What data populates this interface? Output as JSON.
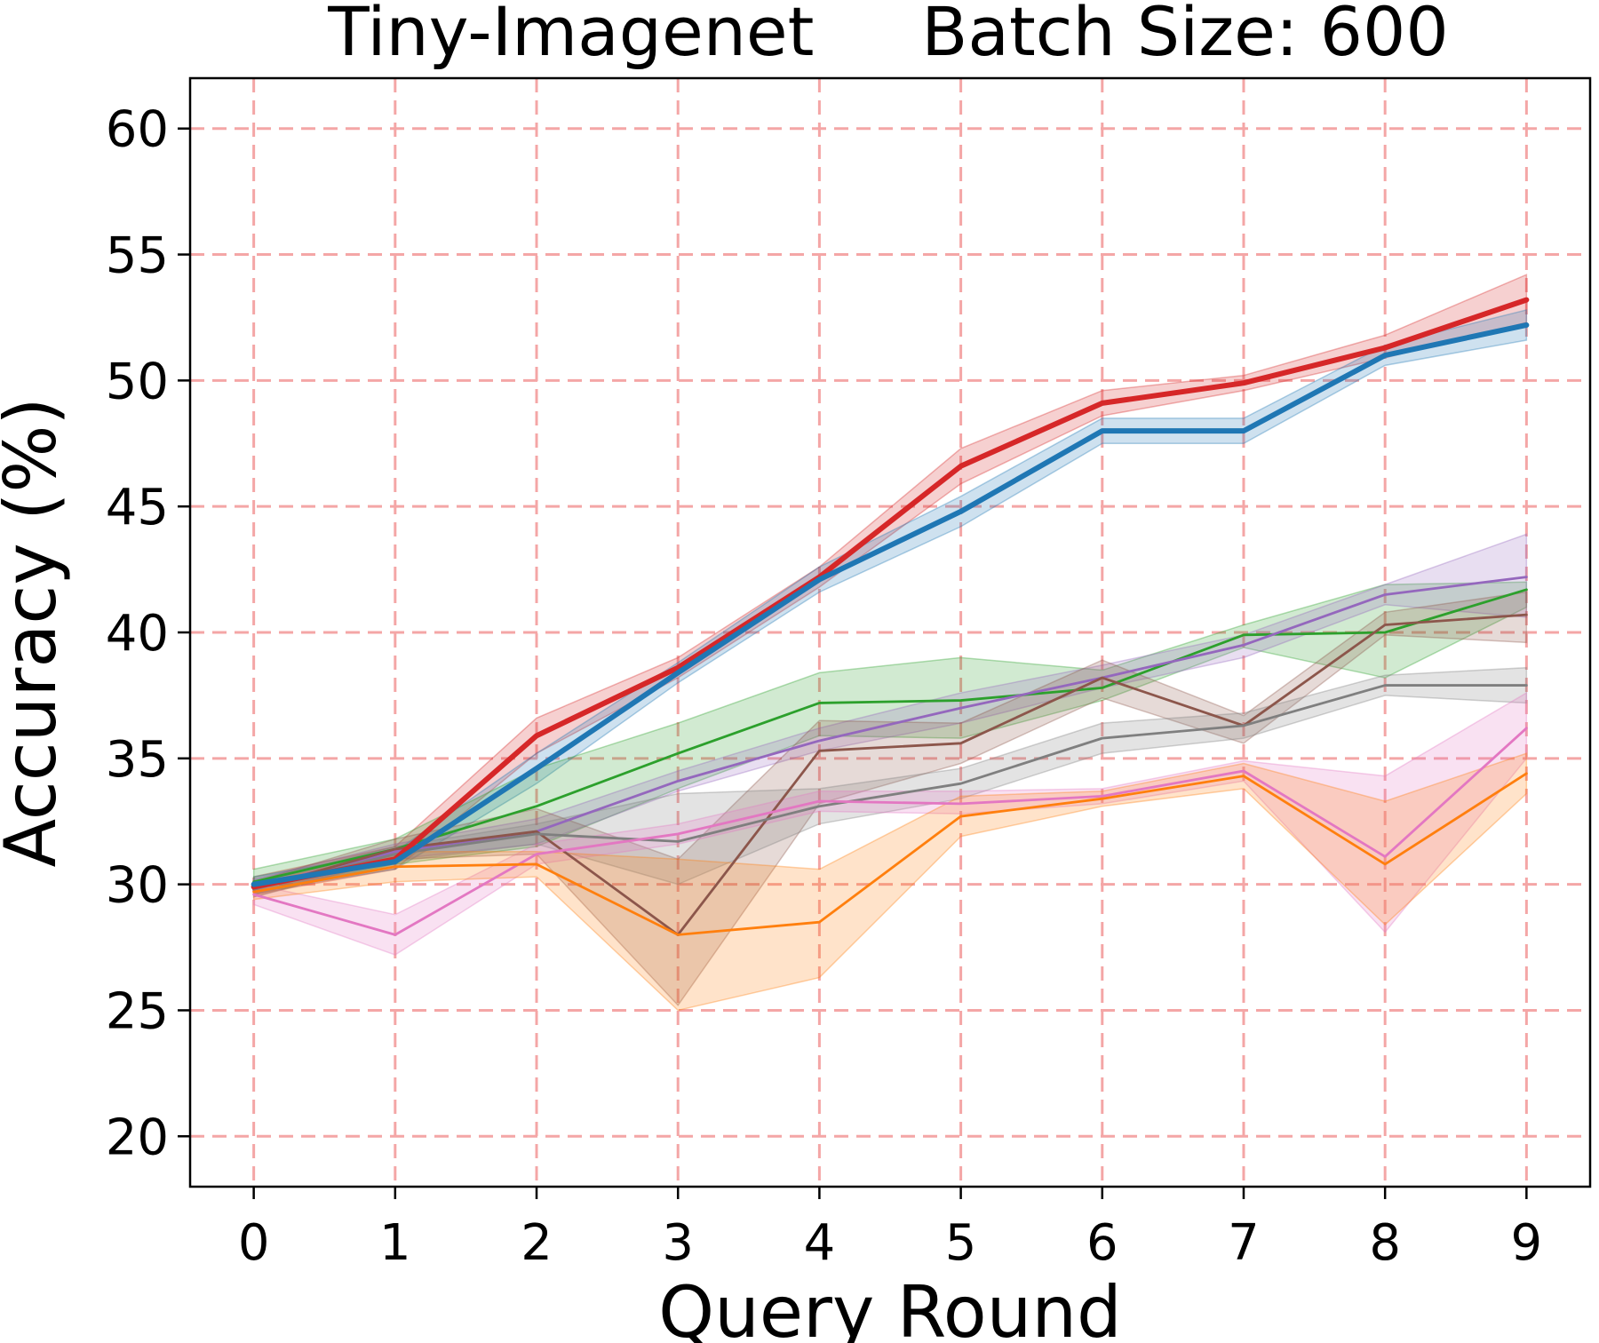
{
  "chart_data": {
    "type": "line",
    "title": "Tiny-Imagenet     Batch Size: 600",
    "xlabel": "Query Round",
    "ylabel": "Accuracy (%)",
    "x": [
      0,
      1,
      2,
      3,
      4,
      5,
      6,
      7,
      8,
      9
    ],
    "xlim": [
      -0.45,
      9.45
    ],
    "ylim": [
      18,
      62
    ],
    "xticks": [
      "0",
      "1",
      "2",
      "3",
      "4",
      "5",
      "6",
      "7",
      "8",
      "9"
    ],
    "yticks": [
      "20",
      "25",
      "30",
      "35",
      "40",
      "45",
      "50",
      "55",
      "60"
    ],
    "grid": true,
    "grid_color": "#f4a6a6",
    "legend": "none",
    "series": [
      {
        "color": "#d62728",
        "emphasis": true,
        "values": [
          29.9,
          31.0,
          35.9,
          38.6,
          42.2,
          46.6,
          49.1,
          49.9,
          51.3,
          53.2
        ],
        "lower": [
          29.6,
          30.6,
          35.2,
          38.2,
          41.8,
          45.9,
          48.6,
          49.6,
          50.9,
          52.3
        ],
        "upper": [
          30.3,
          31.5,
          36.6,
          39.0,
          42.6,
          47.3,
          49.6,
          50.2,
          51.8,
          54.2
        ]
      },
      {
        "color": "#1f77b4",
        "emphasis": true,
        "values": [
          30.0,
          30.9,
          34.6,
          38.4,
          42.1,
          44.8,
          48.0,
          48.0,
          51.0,
          52.2
        ],
        "lower": [
          29.7,
          30.6,
          34.0,
          38.0,
          41.6,
          44.2,
          47.5,
          47.5,
          50.6,
          51.6
        ],
        "upper": [
          30.3,
          31.3,
          35.2,
          38.8,
          42.6,
          45.4,
          48.5,
          48.5,
          51.4,
          52.8
        ]
      },
      {
        "color": "#2ca02c",
        "values": [
          30.1,
          31.4,
          33.1,
          35.2,
          37.2,
          37.3,
          37.8,
          39.9,
          40.0,
          41.7
        ],
        "lower": [
          29.6,
          30.8,
          31.5,
          33.8,
          35.9,
          35.8,
          37.3,
          39.4,
          38.2,
          41.0
        ],
        "upper": [
          30.6,
          31.8,
          34.6,
          36.4,
          38.4,
          39.0,
          38.5,
          40.3,
          41.9,
          42.0
        ]
      },
      {
        "color": "#9467bd",
        "values": [
          29.9,
          31.3,
          32.1,
          34.1,
          35.7,
          37.0,
          38.2,
          39.5,
          41.5,
          42.2
        ],
        "lower": [
          29.6,
          31.0,
          31.6,
          33.7,
          35.3,
          36.4,
          37.8,
          39.0,
          41.1,
          40.6
        ],
        "upper": [
          30.2,
          31.6,
          32.6,
          34.5,
          36.2,
          37.6,
          38.7,
          39.9,
          41.9,
          43.9
        ]
      },
      {
        "color": "#8c564b",
        "values": [
          29.8,
          31.4,
          32.1,
          28.0,
          35.3,
          35.6,
          38.2,
          36.3,
          40.3,
          40.7
        ],
        "lower": [
          29.5,
          31.0,
          31.2,
          25.2,
          33.2,
          34.8,
          37.4,
          35.6,
          39.9,
          39.6
        ],
        "upper": [
          30.1,
          31.8,
          33.0,
          31.0,
          36.5,
          36.4,
          38.9,
          36.7,
          40.8,
          41.6
        ]
      },
      {
        "color": "#7f7f7f",
        "values": [
          29.8,
          31.2,
          32.0,
          31.7,
          33.1,
          34.0,
          35.8,
          36.3,
          37.9,
          37.9
        ],
        "lower": [
          29.5,
          30.9,
          31.6,
          30.0,
          32.4,
          33.4,
          35.2,
          35.8,
          37.5,
          37.2
        ],
        "upper": [
          30.1,
          31.5,
          32.4,
          33.6,
          33.8,
          34.6,
          36.4,
          36.8,
          38.3,
          38.6
        ]
      },
      {
        "color": "#e377c2",
        "values": [
          29.6,
          28.0,
          31.2,
          32.0,
          33.3,
          33.2,
          33.5,
          34.5,
          31.1,
          36.2
        ],
        "lower": [
          29.2,
          27.2,
          30.8,
          31.6,
          32.9,
          32.8,
          33.2,
          34.1,
          28.1,
          35.0
        ],
        "upper": [
          30.0,
          28.8,
          31.6,
          32.4,
          33.7,
          33.7,
          33.8,
          34.9,
          34.3,
          37.6
        ]
      },
      {
        "color": "#ff7f0e",
        "values": [
          29.7,
          30.7,
          30.8,
          28.0,
          28.5,
          32.7,
          33.4,
          34.3,
          30.8,
          34.4
        ],
        "lower": [
          29.4,
          30.1,
          30.3,
          25.0,
          26.3,
          31.9,
          33.1,
          33.8,
          28.4,
          33.6
        ],
        "upper": [
          30.0,
          31.3,
          31.3,
          31.0,
          30.6,
          33.5,
          33.7,
          34.8,
          33.3,
          35.2
        ]
      }
    ]
  }
}
